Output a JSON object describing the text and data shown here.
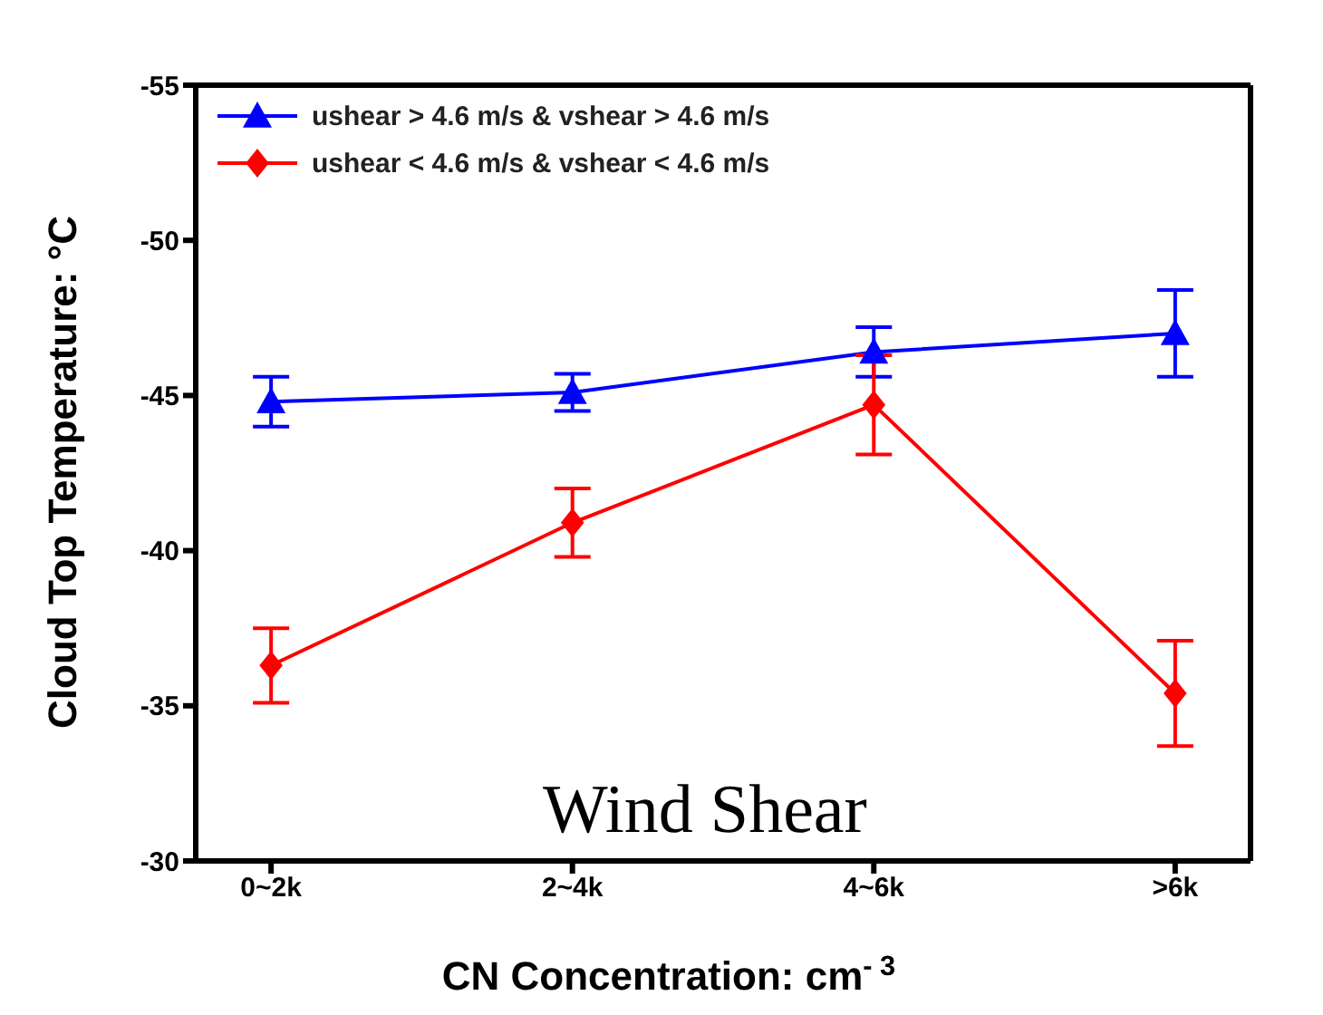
{
  "chart_data": {
    "type": "line",
    "xlabel": "CN Concentration: cm$^{- 3}$",
    "ylabel": "Cloud Top Temperature: °C",
    "categories": [
      "0~2k",
      "2~4k",
      "4~6k",
      ">6k"
    ],
    "series": [
      {
        "name": "ushear > 4.6 m/s & vshear > 4.6 m/s",
        "color": "#0000ff",
        "marker": "triangle",
        "values": [
          -44.8,
          -45.1,
          -46.4,
          -47.0
        ],
        "errors": [
          0.8,
          0.6,
          0.8,
          1.4
        ]
      },
      {
        "name": "ushear < 4.6 m/s & vshear < 4.6 m/s",
        "color": "#ff0000",
        "marker": "diamond",
        "values": [
          -36.3,
          -40.9,
          -44.7,
          -35.4
        ],
        "errors": [
          1.2,
          1.1,
          1.6,
          1.7
        ]
      }
    ],
    "ylim": [
      -30,
      -55
    ],
    "yticks": [
      -55,
      -50,
      -45,
      -40,
      -35,
      -30
    ],
    "grid": false,
    "legend": "top left",
    "line_style": "solid",
    "annotations": [
      "Wind Shear"
    ]
  }
}
